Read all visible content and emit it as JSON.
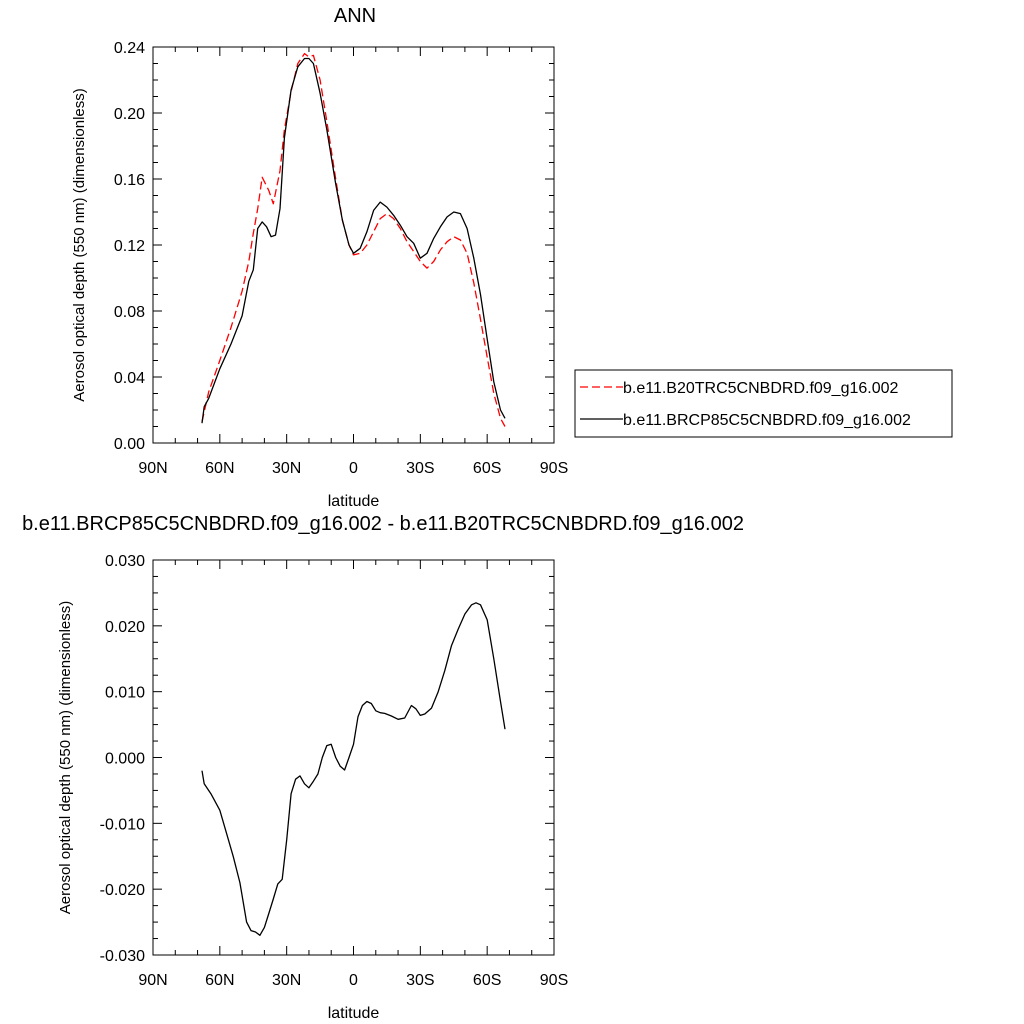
{
  "chart_data": [
    {
      "type": "line",
      "title": "ANN",
      "xlabel": "latitude",
      "ylabel": "Aerosol optical depth (550 nm) (dimensionless)",
      "xlim": [
        90,
        -90
      ],
      "ylim": [
        0.0,
        0.24
      ],
      "x_ticks": [
        90,
        60,
        30,
        0,
        -30,
        -60,
        -90
      ],
      "x_tick_labels": [
        "90N",
        "60N",
        "30N",
        "0",
        "30S",
        "60S",
        "90S"
      ],
      "y_ticks": [
        0.0,
        0.04,
        0.08,
        0.12,
        0.16,
        0.2,
        0.24
      ],
      "y_tick_labels": [
        "0.00",
        "0.04",
        "0.08",
        "0.12",
        "0.16",
        "0.20",
        "0.24"
      ],
      "legend": {
        "placement": "right",
        "entries": [
          "b.e11.B20TRC5CNBDRD.f09_g16.002",
          "b.e11.BRCP85C5CNBDRD.f09_g16.002"
        ]
      },
      "series": [
        {
          "name": "b.e11.B20TRC5CNBDRD.f09_g16.002",
          "color": "#ff0000",
          "dash": "dashed",
          "x": [
            68,
            65,
            60,
            55,
            50,
            47,
            45,
            43,
            41,
            38,
            36,
            33,
            31,
            28,
            25,
            22,
            20,
            18,
            15,
            12,
            8,
            5,
            2,
            0,
            -3,
            -6,
            -9,
            -12,
            -15,
            -18,
            -21,
            -24,
            -27,
            -30,
            -33,
            -36,
            -39,
            -42,
            -45,
            -48,
            -51,
            -54,
            -57,
            -60,
            -63,
            -66,
            -68
          ],
          "y": [
            0.013,
            0.031,
            0.05,
            0.07,
            0.092,
            0.11,
            0.127,
            0.142,
            0.161,
            0.153,
            0.145,
            0.165,
            0.19,
            0.213,
            0.23,
            0.236,
            0.234,
            0.235,
            0.22,
            0.195,
            0.16,
            0.135,
            0.12,
            0.114,
            0.115,
            0.12,
            0.128,
            0.136,
            0.139,
            0.136,
            0.13,
            0.122,
            0.116,
            0.11,
            0.106,
            0.11,
            0.117,
            0.122,
            0.125,
            0.123,
            0.115,
            0.097,
            0.075,
            0.052,
            0.03,
            0.015,
            0.01
          ]
        },
        {
          "name": "b.e11.BRCP85C5CNBDRD.f09_g16.002",
          "color": "#000000",
          "dash": "solid",
          "x": [
            68,
            67,
            65,
            60,
            55,
            50,
            47,
            45,
            43,
            41,
            39,
            37,
            35,
            33,
            31,
            28,
            25,
            22,
            20,
            18,
            15,
            12,
            8,
            5,
            2,
            0,
            -3,
            -6,
            -9,
            -12,
            -15,
            -18,
            -21,
            -24,
            -27,
            -30,
            -33,
            -36,
            -39,
            -42,
            -45,
            -48,
            -51,
            -54,
            -57,
            -60,
            -63,
            -66,
            -68
          ],
          "y": [
            0.012,
            0.022,
            0.027,
            0.045,
            0.06,
            0.077,
            0.098,
            0.105,
            0.13,
            0.134,
            0.131,
            0.125,
            0.126,
            0.142,
            0.185,
            0.214,
            0.228,
            0.233,
            0.233,
            0.23,
            0.212,
            0.19,
            0.157,
            0.135,
            0.12,
            0.115,
            0.118,
            0.128,
            0.141,
            0.146,
            0.143,
            0.138,
            0.132,
            0.125,
            0.121,
            0.112,
            0.115,
            0.124,
            0.131,
            0.137,
            0.14,
            0.139,
            0.13,
            0.112,
            0.09,
            0.063,
            0.037,
            0.02,
            0.015
          ]
        }
      ]
    },
    {
      "type": "line",
      "title": "b.e11.BRCP85C5CNBDRD.f09_g16.002 - b.e11.B20TRC5CNBDRD.f09_g16.002",
      "xlabel": "latitude",
      "ylabel": "Aerosol optical depth (550 nm) (dimensionless)",
      "xlim": [
        90,
        -90
      ],
      "ylim": [
        -0.03,
        0.03
      ],
      "x_ticks": [
        90,
        60,
        30,
        0,
        -30,
        -60,
        -90
      ],
      "x_tick_labels": [
        "90N",
        "60N",
        "30N",
        "0",
        "30S",
        "60S",
        "90S"
      ],
      "y_ticks": [
        -0.03,
        -0.02,
        -0.01,
        0.0,
        0.01,
        0.02,
        0.03
      ],
      "y_tick_labels": [
        "-0.030",
        "-0.020",
        "-0.010",
        "0.000",
        "0.010",
        "0.020",
        "0.030"
      ],
      "series": [
        {
          "color": "#000000",
          "dash": "solid",
          "x": [
            68,
            67,
            64,
            60,
            57,
            54,
            51,
            48,
            46,
            44,
            42,
            40,
            38,
            36,
            34,
            32,
            30,
            28,
            26,
            24,
            22,
            20,
            18,
            16,
            14,
            12,
            10,
            8,
            6,
            4,
            2,
            0,
            -2,
            -4,
            -6,
            -8,
            -10,
            -12,
            -14,
            -17,
            -20,
            -23,
            -26,
            -28,
            -30,
            -32,
            -35,
            -38,
            -41,
            -44,
            -47,
            -50,
            -53,
            -55,
            -57,
            -60,
            -63,
            -66,
            -68
          ],
          "y": [
            -0.002,
            -0.004,
            -0.0055,
            -0.008,
            -0.0115,
            -0.015,
            -0.019,
            -0.025,
            -0.0263,
            -0.0265,
            -0.027,
            -0.0258,
            -0.0237,
            -0.0215,
            -0.0192,
            -0.0185,
            -0.0125,
            -0.0055,
            -0.0033,
            -0.0028,
            -0.004,
            -0.0046,
            -0.0036,
            -0.0025,
            0.0,
            0.0018,
            0.002,
            0.0,
            -0.0013,
            -0.0019,
            0.0,
            0.002,
            0.0062,
            0.0079,
            0.0085,
            0.0082,
            0.0071,
            0.0068,
            0.0067,
            0.0063,
            0.0058,
            0.006,
            0.0079,
            0.0074,
            0.0064,
            0.0066,
            0.0075,
            0.01,
            0.0132,
            0.017,
            0.0195,
            0.0218,
            0.0232,
            0.0235,
            0.0232,
            0.0209,
            0.015,
            0.0085,
            0.0043
          ]
        }
      ]
    }
  ]
}
